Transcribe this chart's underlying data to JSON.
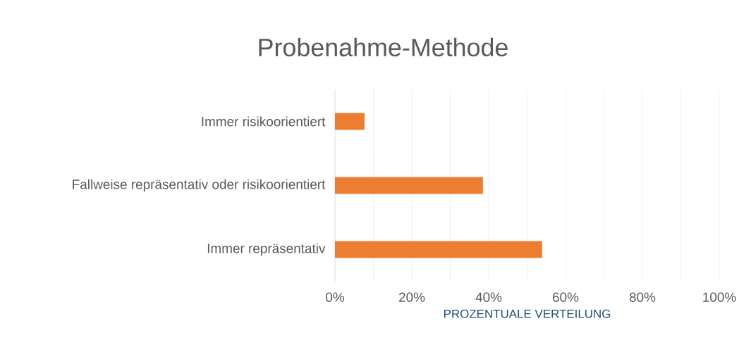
{
  "chart_data": {
    "type": "bar",
    "orientation": "horizontal",
    "title": "Probenahme-Methode",
    "xlabel": "PROZENTUALE VERTEILUNG",
    "categories": [
      "Immer risikoorientiert",
      "Fallweise repräsentativ oder risikoorientiert",
      "Immer repräsentativ"
    ],
    "values": [
      7.7,
      38.5,
      53.9
    ],
    "color": "#ed7d31",
    "xlim": [
      0,
      100
    ],
    "xticks": [
      {
        "value": 0,
        "label": "0%"
      },
      {
        "value": 10,
        "label": null
      },
      {
        "value": 20,
        "label": "20%"
      },
      {
        "value": 30,
        "label": null
      },
      {
        "value": 40,
        "label": "40%"
      },
      {
        "value": 50,
        "label": null
      },
      {
        "value": 60,
        "label": "60%"
      },
      {
        "value": 70,
        "label": null
      },
      {
        "value": 80,
        "label": "80%"
      },
      {
        "value": 90,
        "label": null
      },
      {
        "value": 100,
        "label": "100%"
      }
    ],
    "grid": "x"
  }
}
